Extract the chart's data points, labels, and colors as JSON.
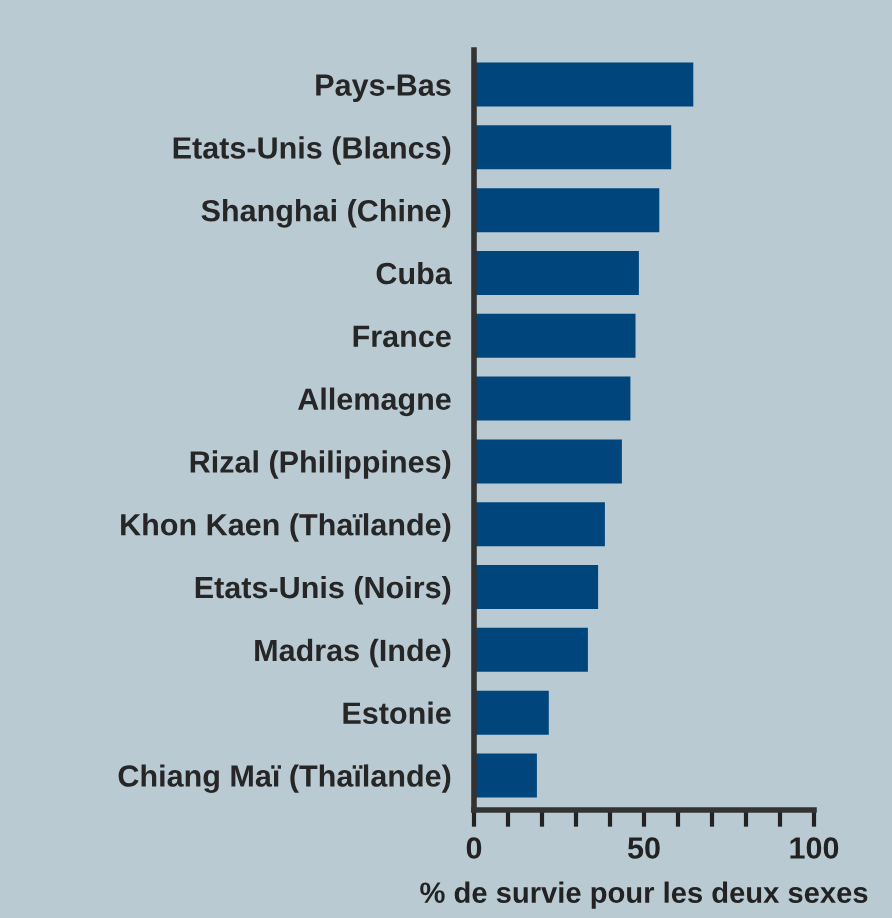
{
  "chart_data": {
    "type": "bar",
    "orientation": "horizontal",
    "xlabel": "% de survie pour les deux sexes",
    "categories": [
      "Pays-Bas",
      "Etats-Unis (Blancs)",
      "Shanghai (Chine)",
      "Cuba",
      "France",
      "Allemagne",
      "Rizal (Philippines)",
      "Khon Kaen (Thaïlande)",
      "Etats-Unis (Noirs)",
      "Madras (Inde)",
      "Estonie",
      "Chiang Maï (Thaïlande)"
    ],
    "values": [
      64.5,
      58,
      54.5,
      48.5,
      47.5,
      46,
      43.5,
      38.5,
      36.5,
      33.5,
      22,
      18.5
    ],
    "color": "#00467c",
    "xlim": [
      0,
      100
    ],
    "xticks": [
      0,
      {
        "value": 10,
        "label": null
      },
      {
        "value": 20,
        "label": null
      },
      {
        "value": 30,
        "label": null
      },
      {
        "value": 40,
        "label": null
      },
      50,
      {
        "value": 60,
        "label": null
      },
      {
        "value": 70,
        "label": null
      },
      {
        "value": 80,
        "label": null
      },
      {
        "value": 90,
        "label": null
      },
      100
    ],
    "grid": false
  }
}
